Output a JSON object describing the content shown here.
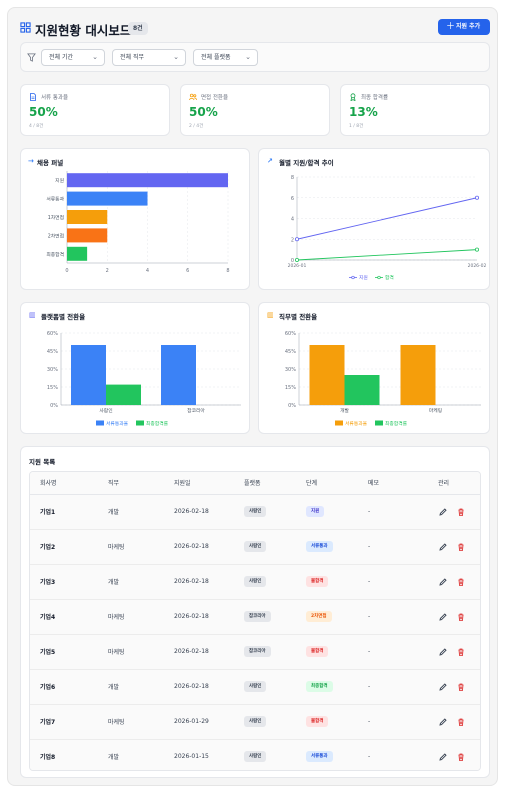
{
  "header": {
    "title": "지원현황 대시보드",
    "count_badge": "8건",
    "add_button_label": "지원 추가",
    "colors": {
      "accent": "#2563eb"
    }
  },
  "filters": {
    "period": "전체 기간",
    "job": "전체 직무",
    "platform": "전체 플랫폼"
  },
  "stats": [
    {
      "label": "서류 통과율",
      "value": "50%",
      "sub": "4 / 8건",
      "icon": "document-icon",
      "color": "#2563eb"
    },
    {
      "label": "면접 전환율",
      "value": "50%",
      "sub": "2 / 4건",
      "icon": "users-icon",
      "color": "#f59e0b"
    },
    {
      "label": "최종 합격률",
      "value": "13%",
      "sub": "1 / 8건",
      "icon": "award-icon",
      "color": "#16a34a"
    }
  ],
  "charts": {
    "funnel_title": "채용 퍼널",
    "trend_title": "월별 지원/합격 추이",
    "platform_title": "플랫폼별 전환율",
    "job_title": "직무별 전환율"
  },
  "chart_data": [
    {
      "type": "bar",
      "orientation": "horizontal",
      "title": "채용 퍼널",
      "categories": [
        "지원",
        "서류통과",
        "1차면접",
        "2차면접",
        "최종합격"
      ],
      "values": [
        8,
        4,
        2,
        2,
        1
      ],
      "colors": [
        "#6366f1",
        "#3b82f6",
        "#f59e0b",
        "#f97316",
        "#22c55e"
      ],
      "xlim": [
        0,
        8
      ],
      "xticks": [
        0,
        2,
        4,
        6,
        8
      ],
      "grid": true
    },
    {
      "type": "line",
      "title": "월별 지원/합격 추이",
      "x": [
        "2026-01",
        "2026-02"
      ],
      "series": [
        {
          "name": "지원",
          "values": [
            2,
            6
          ],
          "color": "#6366f1"
        },
        {
          "name": "합격",
          "values": [
            0,
            1
          ],
          "color": "#22c55e"
        }
      ],
      "ylim": [
        0,
        8
      ],
      "yticks": [
        0,
        2,
        4,
        6,
        8
      ],
      "legend": "bottom",
      "grid": true
    },
    {
      "type": "bar",
      "title": "플랫폼별 전환율",
      "categories": [
        "사람인",
        "잡코리아"
      ],
      "series": [
        {
          "name": "서류통과율",
          "values": [
            50,
            50
          ],
          "color": "#3b82f6"
        },
        {
          "name": "최종합격률",
          "values": [
            17,
            0
          ],
          "color": "#22c55e"
        }
      ],
      "ylim": [
        0,
        60
      ],
      "yticks": [
        "0%",
        "15%",
        "30%",
        "45%",
        "60%"
      ],
      "legend": "bottom",
      "grid": true
    },
    {
      "type": "bar",
      "title": "직무별 전환율",
      "categories": [
        "개발",
        "마케팅"
      ],
      "series": [
        {
          "name": "서류통과율",
          "values": [
            50,
            50
          ],
          "color": "#f59e0b"
        },
        {
          "name": "최종합격률",
          "values": [
            25,
            0
          ],
          "color": "#22c55e"
        }
      ],
      "ylim": [
        0,
        60
      ],
      "yticks": [
        "0%",
        "15%",
        "30%",
        "45%",
        "60%"
      ],
      "legend": "bottom",
      "grid": true
    }
  ],
  "list": {
    "title": "지원 목록",
    "columns": [
      "회사명",
      "직무",
      "지원일",
      "플랫폼",
      "단계",
      "메모",
      "관리"
    ],
    "rows": [
      {
        "company": "기업1",
        "job": "개발",
        "date": "2026-02-18",
        "platform": "사람인",
        "stage": "지원",
        "stage_bg": "#e0e7ff",
        "stage_fg": "#4338ca",
        "memo": "-"
      },
      {
        "company": "기업2",
        "job": "마케팅",
        "date": "2026-02-18",
        "platform": "사람인",
        "stage": "서류통과",
        "stage_bg": "#dbeafe",
        "stage_fg": "#1d4ed8",
        "memo": "-"
      },
      {
        "company": "기업3",
        "job": "개발",
        "date": "2026-02-18",
        "platform": "사람인",
        "stage": "불합격",
        "stage_bg": "#fee2e2",
        "stage_fg": "#dc2626",
        "memo": "-"
      },
      {
        "company": "기업4",
        "job": "마케팅",
        "date": "2026-02-18",
        "platform": "잡코리아",
        "stage": "2차면접",
        "stage_bg": "#ffedd5",
        "stage_fg": "#ea580c",
        "memo": "-"
      },
      {
        "company": "기업5",
        "job": "마케팅",
        "date": "2026-02-18",
        "platform": "잡코리아",
        "stage": "불합격",
        "stage_bg": "#fee2e2",
        "stage_fg": "#dc2626",
        "memo": "-"
      },
      {
        "company": "기업6",
        "job": "개발",
        "date": "2026-02-18",
        "platform": "사람인",
        "stage": "최종합격",
        "stage_bg": "#dcfce7",
        "stage_fg": "#16a34a",
        "memo": "-"
      },
      {
        "company": "기업7",
        "job": "마케팅",
        "date": "2026-01-29",
        "platform": "사람인",
        "stage": "불합격",
        "stage_bg": "#fee2e2",
        "stage_fg": "#dc2626",
        "memo": "-"
      },
      {
        "company": "기업8",
        "job": "개발",
        "date": "2026-01-15",
        "platform": "사람인",
        "stage": "서류통과",
        "stage_bg": "#dbeafe",
        "stage_fg": "#1d4ed8",
        "memo": "-"
      }
    ]
  }
}
